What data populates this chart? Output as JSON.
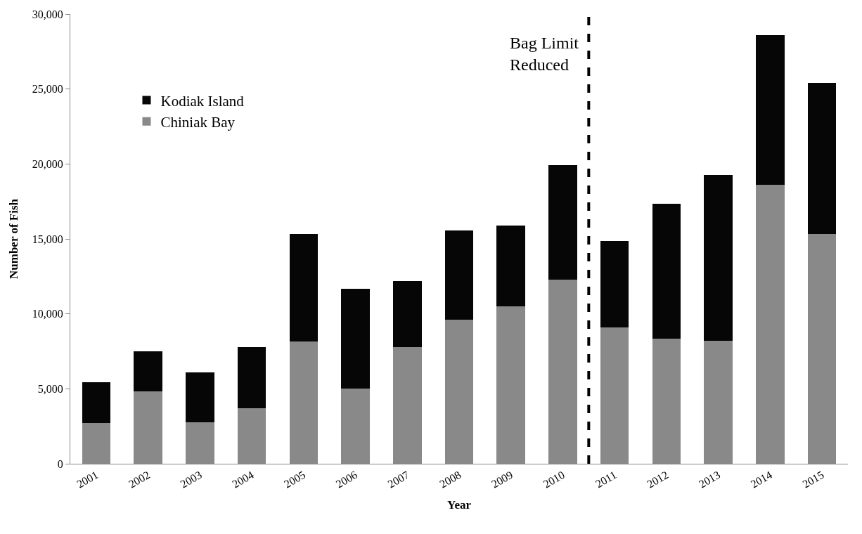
{
  "chart_data": {
    "type": "bar",
    "stacked": true,
    "xlabel": "Year",
    "ylabel": "Number of Fish",
    "x": [
      2001,
      2002,
      2003,
      2004,
      2005,
      2006,
      2007,
      2008,
      2009,
      2010,
      2011,
      2012,
      2013,
      2014,
      2015
    ],
    "xlim": [
      2000.5,
      2015.5
    ],
    "xticks": [
      2001,
      2002,
      2003,
      2004,
      2005,
      2006,
      2007,
      2008,
      2009,
      2010,
      2011,
      2012,
      2013,
      2014,
      2015
    ],
    "ylim": [
      0,
      30000
    ],
    "yticks": [
      {
        "value": 0,
        "label": "0"
      },
      {
        "value": 5000,
        "label": "5,000"
      },
      {
        "value": 10000,
        "label": "10,000"
      },
      {
        "value": 15000,
        "label": "15,000"
      },
      {
        "value": 20000,
        "label": "20,000"
      },
      {
        "value": 25000,
        "label": "25,000"
      },
      {
        "value": 30000,
        "label": "30,000"
      }
    ],
    "series": [
      {
        "name": "Chiniak Bay",
        "color": "#898989",
        "values": [
          2700,
          4850,
          2750,
          3700,
          8150,
          5000,
          7800,
          9600,
          10500,
          12300,
          9100,
          8350,
          8200,
          18600,
          15350
        ]
      },
      {
        "name": "Kodiak Island",
        "color": "#060606",
        "values": [
          2750,
          2650,
          3350,
          4100,
          7200,
          6650,
          4400,
          5950,
          5400,
          7600,
          5750,
          9000,
          11050,
          10000,
          10050
        ]
      }
    ],
    "ref_lines": [
      {
        "axis": "x",
        "value": 2010.5,
        "label": "Bag Limit\nReduced",
        "color": "#000000",
        "line_style": "dashed"
      }
    ],
    "legend": "top left"
  }
}
